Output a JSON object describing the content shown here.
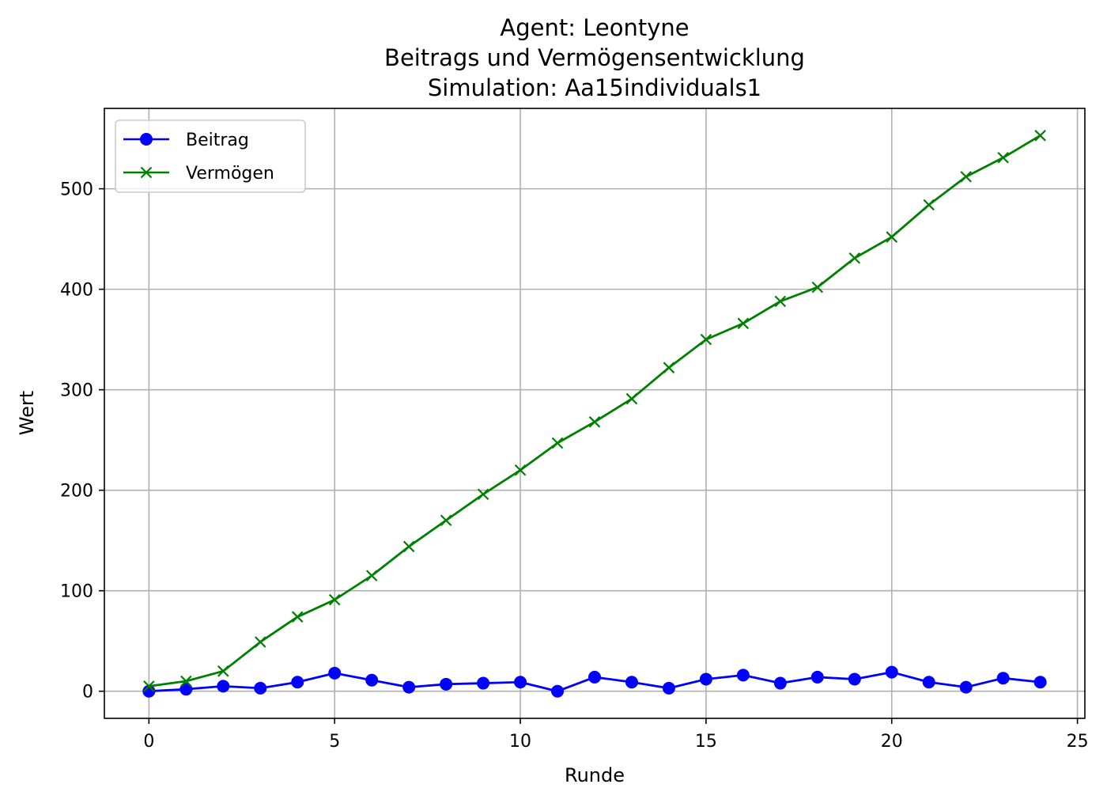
{
  "chart_data": {
    "type": "line",
    "title_lines": [
      "Agent: Leontyne",
      "Beitrags und Vermögensentwicklung",
      "Simulation: Aa15individuals1"
    ],
    "xlabel": "Runde",
    "ylabel": "Wert",
    "xlim": [
      -1.2,
      25.2
    ],
    "ylim": [
      -27,
      580
    ],
    "x_ticks": [
      0,
      5,
      10,
      15,
      20,
      25
    ],
    "y_ticks": [
      0,
      100,
      200,
      300,
      400,
      500
    ],
    "grid": true,
    "legend_position": "upper-left",
    "x": [
      0,
      1,
      2,
      3,
      4,
      5,
      6,
      7,
      8,
      9,
      10,
      11,
      12,
      13,
      14,
      15,
      16,
      17,
      18,
      19,
      20,
      21,
      22,
      23,
      24
    ],
    "series": [
      {
        "name": "Beitrag",
        "color": "#0000ff",
        "marker": "circle",
        "values": [
          0,
          2,
          5,
          3,
          9,
          18,
          11,
          4,
          7,
          8,
          9,
          0,
          14,
          9,
          3,
          12,
          16,
          8,
          14,
          12,
          19,
          9,
          4,
          13,
          9
        ]
      },
      {
        "name": "Vermögen",
        "color": "#008000",
        "marker": "x",
        "values": [
          5,
          10,
          20,
          49,
          74,
          91,
          115,
          144,
          170,
          196,
          220,
          247,
          268,
          291,
          322,
          350,
          366,
          388,
          402,
          431,
          452,
          484,
          512,
          531,
          553
        ]
      }
    ]
  }
}
